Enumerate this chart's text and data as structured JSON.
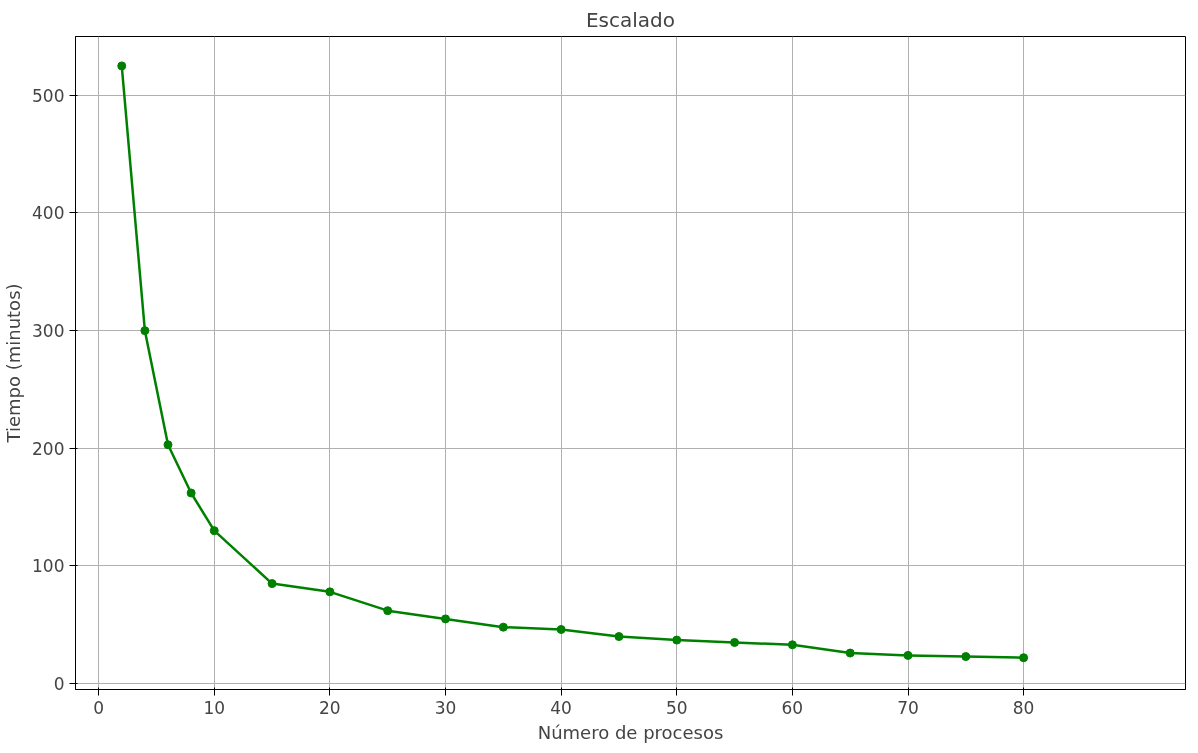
{
  "chart_data": {
    "type": "line",
    "title": "Escalado",
    "xlabel": "Número de procesos",
    "ylabel": "Tiempo (minutos)",
    "x": [
      2,
      4,
      6,
      8,
      10,
      15,
      20,
      25,
      30,
      35,
      40,
      45,
      50,
      55,
      60,
      65,
      70,
      75,
      80
    ],
    "series": [
      {
        "color": "#008000",
        "values": [
          525,
          300,
          203,
          162,
          130,
          85,
          78,
          62,
          55,
          48,
          46,
          40,
          37,
          35,
          33,
          26,
          24,
          23,
          22
        ]
      }
    ],
    "xlim": [
      -2,
      94
    ],
    "ylim": [
      -5,
      550
    ],
    "xticks": [
      0,
      10,
      20,
      30,
      40,
      50,
      60,
      70,
      80
    ],
    "yticks": [
      0,
      100,
      200,
      300,
      400,
      500
    ],
    "grid": true,
    "marker": "circle",
    "line_style": "solid"
  }
}
